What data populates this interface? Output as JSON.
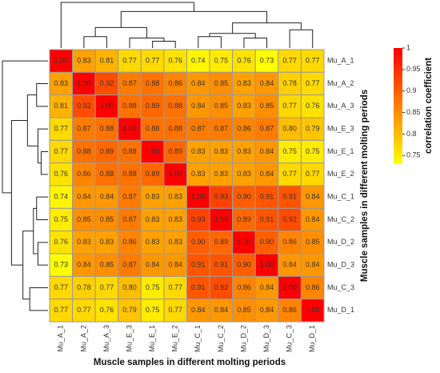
{
  "chart_data": {
    "type": "heatmap",
    "x_label": "Muscle samples in different molting periods",
    "y_label": "Muscle samples in different molting periods",
    "categories": [
      "Mu_A_1",
      "Mu_A_2",
      "Mu_A_3",
      "Mu_E_3",
      "Mu_E_1",
      "Mu_E_2",
      "Mu_C_1",
      "Mu_C_2",
      "Mu_D_2",
      "Mu_D_3",
      "Mu_C_3",
      "Mu_D_1"
    ],
    "values": [
      [
        1,
        0.83,
        0.81,
        0.77,
        0.77,
        0.76,
        0.74,
        0.75,
        0.76,
        0.73,
        0.77,
        0.77
      ],
      [
        0.83,
        1,
        0.92,
        0.87,
        0.88,
        0.86,
        0.84,
        0.85,
        0.83,
        0.84,
        0.78,
        0.77
      ],
      [
        0.81,
        0.92,
        1,
        0.88,
        0.89,
        0.88,
        0.84,
        0.85,
        0.83,
        0.85,
        0.77,
        0.76
      ],
      [
        0.77,
        0.87,
        0.88,
        1,
        0.88,
        0.88,
        0.87,
        0.87,
        0.86,
        0.87,
        0.8,
        0.79
      ],
      [
        0.77,
        0.88,
        0.89,
        0.88,
        1,
        0.89,
        0.83,
        0.83,
        0.83,
        0.84,
        0.75,
        0.75
      ],
      [
        0.76,
        0.86,
        0.88,
        0.88,
        0.89,
        1,
        0.83,
        0.83,
        0.83,
        0.84,
        0.77,
        0.77
      ],
      [
        0.74,
        0.84,
        0.84,
        0.87,
        0.83,
        0.83,
        1,
        0.93,
        0.9,
        0.91,
        0.91,
        0.84
      ],
      [
        0.75,
        0.85,
        0.85,
        0.87,
        0.83,
        0.83,
        0.93,
        1,
        0.89,
        0.91,
        0.92,
        0.84
      ],
      [
        0.76,
        0.83,
        0.83,
        0.86,
        0.83,
        0.83,
        0.9,
        0.89,
        1,
        0.9,
        0.86,
        0.85
      ],
      [
        0.73,
        0.84,
        0.85,
        0.87,
        0.84,
        0.84,
        0.91,
        0.91,
        0.9,
        1,
        0.84,
        0.84
      ],
      [
        0.77,
        0.78,
        0.77,
        0.8,
        0.75,
        0.77,
        0.91,
        0.92,
        0.86,
        0.84,
        1,
        0.86
      ],
      [
        0.77,
        0.77,
        0.76,
        0.79,
        0.75,
        0.77,
        0.84,
        0.84,
        0.85,
        0.84,
        0.86,
        1
      ]
    ],
    "value_labels": [
      [
        "1.00",
        "0.83",
        "0.81",
        "0.77",
        "0.77",
        "0.76",
        "0.74",
        "0.75",
        "0.76",
        "0.73",
        "0.77",
        "0.77"
      ],
      [
        "0.83",
        "1.00",
        "0.92",
        "0.87",
        "0.88",
        "0.86",
        "0.84",
        "0.85",
        "0.83",
        "0.84",
        "0.78",
        "0.77"
      ],
      [
        "0.81",
        "0.92",
        "1.00",
        "0.88",
        "0.89",
        "0.88",
        "0.84",
        "0.85",
        "0.83",
        "0.85",
        "0.77",
        "0.76"
      ],
      [
        "0.77",
        "0.87",
        "0.88",
        "1.00",
        "0.88",
        "0.88",
        "0.87",
        "0.87",
        "0.86",
        "0.87",
        "0.80",
        "0.79"
      ],
      [
        "0.77",
        "0.88",
        "0.89",
        "0.88",
        "1.00",
        "0.89",
        "0.83",
        "0.83",
        "0.83",
        "0.84",
        "0.75",
        "0.75"
      ],
      [
        "0.76",
        "0.86",
        "0.88",
        "0.88",
        "0.89",
        "1.00",
        "0.83",
        "0.83",
        "0.83",
        "0.84",
        "0.77",
        "0.77"
      ],
      [
        "0.74",
        "0.84",
        "0.84",
        "0.87",
        "0.83",
        "0.83",
        "1.00",
        "0.93",
        "0.90",
        "0.91",
        "0.91",
        "0.84"
      ],
      [
        "0.75",
        "0.85",
        "0.85",
        "0.87",
        "0.83",
        "0.83",
        "0.93",
        "1.00",
        "0.89",
        "0.91",
        "0.92",
        "0.84"
      ],
      [
        "0.76",
        "0.83",
        "0.83",
        "0.86",
        "0.83",
        "0.83",
        "0.90",
        "0.89",
        "1.00",
        "0.90",
        "0.86",
        "0.85"
      ],
      [
        "0.73",
        "0.84",
        "0.85",
        "0.87",
        "0.84",
        "0.84",
        "0.91",
        "0.91",
        "0.90",
        "1.00",
        "0.84",
        "0.84"
      ],
      [
        "0.77",
        "0.78",
        "0.77",
        "0.80",
        "0.75",
        "0.77",
        "0.91",
        "0.92",
        "0.86",
        "0.84",
        "1.00",
        "0.86"
      ],
      [
        "0.77",
        "0.77",
        "0.76",
        "0.79",
        "0.75",
        "0.77",
        "0.84",
        "0.84",
        "0.85",
        "0.84",
        "0.86",
        "1.00"
      ]
    ],
    "colorbar": {
      "title": "correlation coefficient",
      "lim": [
        0.73,
        1
      ],
      "ticks": [
        1,
        0.95,
        0.9,
        0.85,
        0.8,
        0.75
      ]
    }
  }
}
